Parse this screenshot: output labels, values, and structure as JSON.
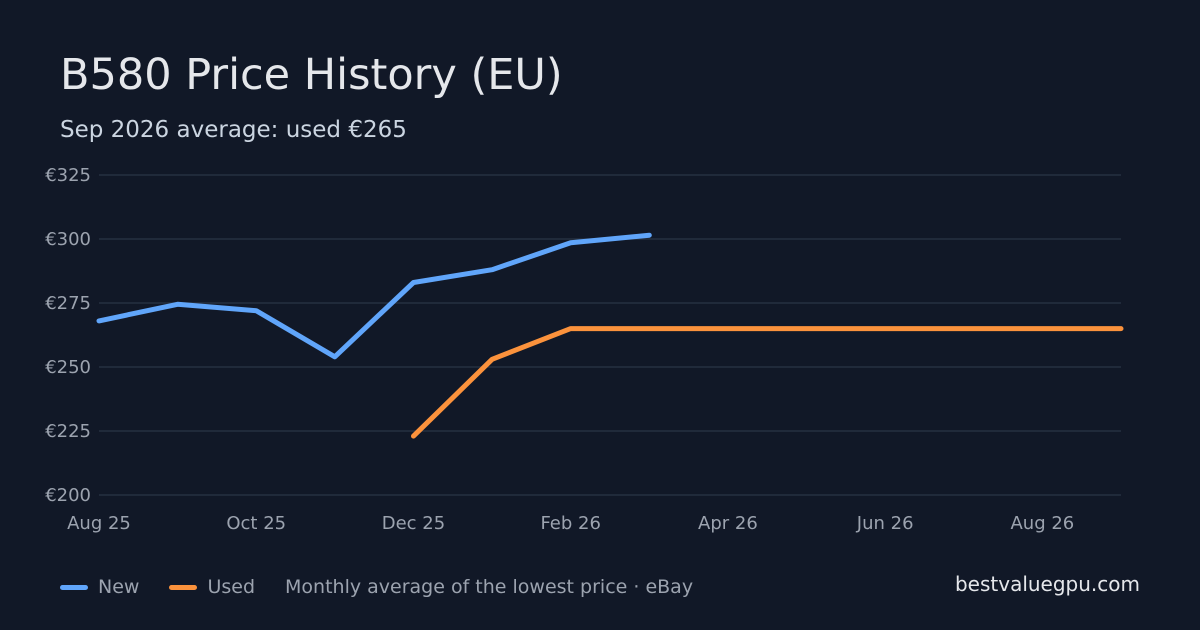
{
  "header": {
    "title": "B580 Price History (EU)",
    "subtitle": "Sep 2026 average: used €265"
  },
  "legend": {
    "items": [
      {
        "label": "New",
        "color": "#60a5fa"
      },
      {
        "label": "Used",
        "color": "#fb923c"
      }
    ],
    "note": "Monthly average of the lowest price · eBay"
  },
  "brand": "bestvaluegpu.com",
  "chart_data": {
    "type": "line",
    "title": "B580 Price History (EU)",
    "subtitle": "Sep 2026 average: used €265",
    "x": [
      "2025-08",
      "2025-09",
      "2025-10",
      "2025-11",
      "2025-12",
      "2026-01",
      "2026-02",
      "2026-03",
      "2026-04",
      "2026-05",
      "2026-06",
      "2026-07",
      "2026-08",
      "2026-09"
    ],
    "xlim": [
      "2025-08",
      "2026-09"
    ],
    "x_ticks": [
      "Aug 25",
      "Oct 25",
      "Dec 25",
      "Feb 26",
      "Apr 26",
      "Jun 26",
      "Aug 26"
    ],
    "x_tick_months": [
      "2025-08",
      "2025-10",
      "2025-12",
      "2026-02",
      "2026-04",
      "2026-06",
      "2026-08"
    ],
    "ylim": [
      200,
      325
    ],
    "y_ticks": [
      200,
      225,
      250,
      275,
      300,
      325
    ],
    "y_tick_labels": [
      "€200",
      "€225",
      "€250",
      "€275",
      "€300",
      "€325"
    ],
    "grid": true,
    "legend_position": "bottom-left",
    "series": [
      {
        "name": "New",
        "color": "#60a5fa",
        "values": [
          268,
          274.5,
          272,
          254,
          283,
          288,
          298.5,
          301.5,
          null,
          null,
          null,
          null,
          null,
          null
        ]
      },
      {
        "name": "Used",
        "color": "#fb923c",
        "values": [
          null,
          null,
          null,
          null,
          223,
          253,
          265,
          265,
          265,
          265,
          265,
          265,
          265,
          265
        ]
      }
    ]
  }
}
